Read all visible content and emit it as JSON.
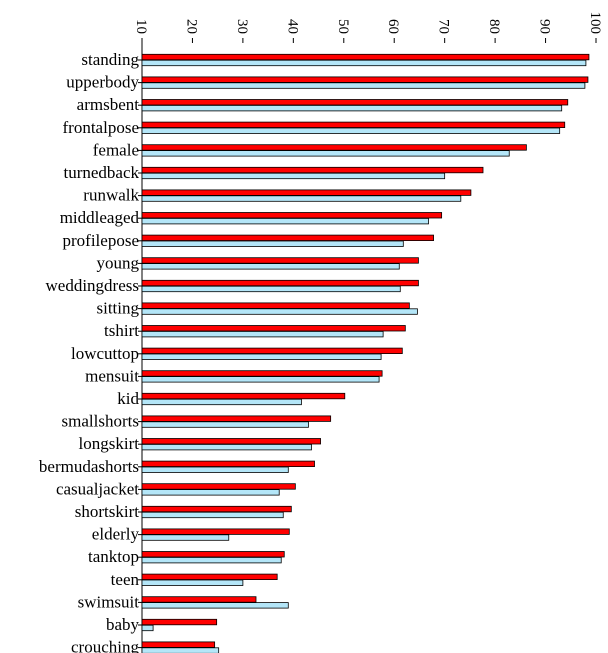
{
  "chart_data": {
    "type": "bar",
    "orientation": "horizontal",
    "title": "",
    "xlabel": "",
    "ylabel": "",
    "xlim": [
      10,
      100
    ],
    "x_ticks": [
      "10",
      "20",
      "30",
      "40",
      "50",
      "60",
      "70",
      "80",
      "90",
      "100"
    ],
    "x_tick_values": [
      10,
      20,
      30,
      40,
      50,
      60,
      70,
      80,
      90,
      100
    ],
    "tick_label_rotation": "vertical",
    "axis_position": "top",
    "grid": false,
    "legend": "none",
    "categories": [
      "standing",
      "upperbody",
      "armsbent",
      "frontalpose",
      "female",
      "turnedback",
      "runwalk",
      "middleaged",
      "profilepose",
      "young",
      "weddingdress",
      "sitting",
      "tshirt",
      "lowcuttop",
      "mensuit",
      "kid",
      "smallshorts",
      "longskirt",
      "bermudashorts",
      "casualjacket",
      "shortskirt",
      "elderly",
      "tanktop",
      "teen",
      "swimsuit",
      "baby",
      "crouching"
    ],
    "series": [
      {
        "color": "#ff0000",
        "values": [
          98.6,
          98.4,
          94.4,
          93.8,
          86.2,
          77.6,
          75.2,
          69.4,
          67.8,
          64.8,
          64.8,
          63.0,
          62.2,
          61.6,
          57.6,
          50.2,
          47.4,
          45.4,
          44.2,
          40.4,
          39.6,
          39.2,
          38.2,
          36.8,
          32.6,
          24.8,
          24.4
        ]
      },
      {
        "color": "#b4e6f8",
        "values": [
          98.0,
          97.8,
          93.2,
          92.8,
          82.8,
          70.0,
          73.2,
          66.8,
          61.8,
          61.0,
          61.2,
          64.6,
          57.8,
          57.4,
          57.0,
          41.6,
          43.0,
          43.6,
          39.0,
          37.2,
          38.0,
          27.2,
          37.6,
          30.0,
          39.0,
          12.2,
          25.2
        ]
      }
    ]
  }
}
